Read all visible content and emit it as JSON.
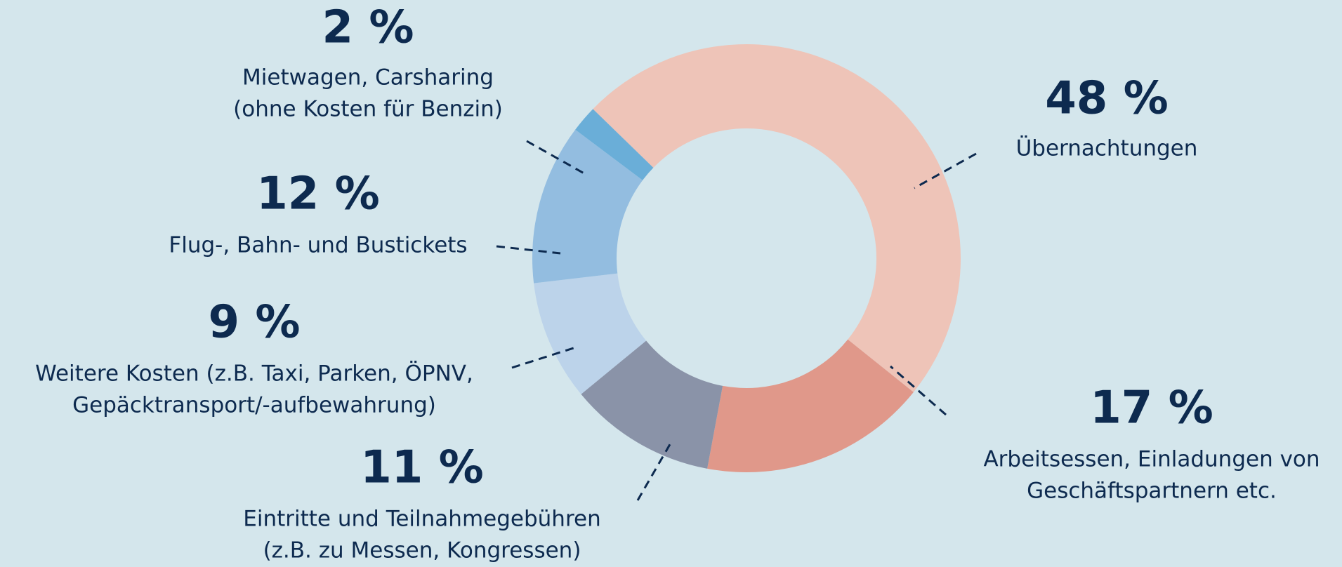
{
  "chart_data": {
    "type": "donut",
    "values": [
      48,
      17,
      11,
      9,
      12,
      2
    ],
    "value_labels": [
      "48 %",
      "17 %",
      "11 %",
      "9 %",
      "12 %",
      "2 %"
    ],
    "labels": [
      [
        "Übernachtungen"
      ],
      [
        "Arbeitsessen, Einladungen von",
        "Geschäftspartnern etc."
      ],
      [
        "Eintritte und Teilnahmegebühren",
        "(z.B. zu Messen, Kongressen)"
      ],
      [
        "Weitere Kosten (z.B. Taxi, Parken, ÖPNV,",
        "Gepäcktransport/-aufbewahrung)"
      ],
      [
        "Flug-, Bahn- und Bustickets"
      ],
      [
        "Mietwagen, Carsharing",
        "(ohne Kosten für Benzin)"
      ]
    ],
    "colors": [
      "#eec4b8",
      "#e0988a",
      "#8a93a8",
      "#bcd3ea",
      "#93bde0",
      "#6aaed8"
    ]
  }
}
